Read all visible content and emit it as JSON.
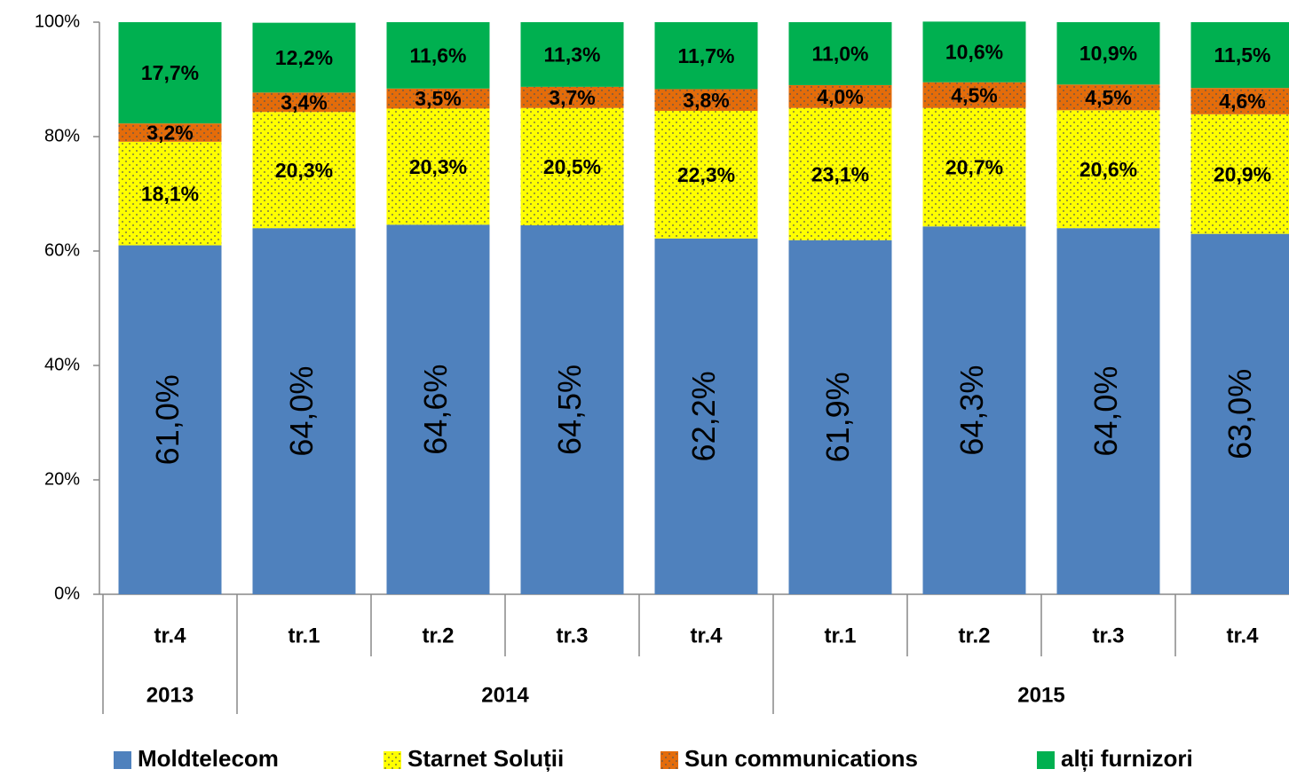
{
  "chart_data": {
    "type": "stacked_bar",
    "categories": [
      "tr.4",
      "tr.1",
      "tr.2",
      "tr.3",
      "tr.4",
      "tr.1",
      "tr.2",
      "tr.3",
      "tr.4"
    ],
    "year_groups": [
      {
        "name": "2013",
        "count": 1
      },
      {
        "name": "2014",
        "count": 4
      },
      {
        "name": "2015",
        "count": 4
      }
    ],
    "series": [
      {
        "name": "Moldtelecom",
        "color": "#4f81bd",
        "values": [
          61.0,
          64.0,
          64.6,
          64.5,
          62.2,
          61.9,
          64.3,
          64.0,
          63.0
        ],
        "value_labels": [
          "61,0%",
          "64,0%",
          "64,6%",
          "64,5%",
          "62,2%",
          "61,9%",
          "64,3%",
          "64,0%",
          "63,0%"
        ]
      },
      {
        "name": "Starnet Soluții",
        "color": "#ffff00",
        "pattern": "dots",
        "values": [
          18.1,
          20.3,
          20.3,
          20.5,
          22.3,
          23.1,
          20.7,
          20.6,
          20.9
        ],
        "value_labels": [
          "18,1%",
          "20,3%",
          "20,3%",
          "20,5%",
          "22,3%",
          "23,1%",
          "20,7%",
          "20,6%",
          "20,9%"
        ]
      },
      {
        "name": "Sun communications",
        "color": "#e46c0a",
        "pattern": "dots",
        "values": [
          3.2,
          3.4,
          3.5,
          3.7,
          3.8,
          4.0,
          4.5,
          4.5,
          4.6
        ],
        "value_labels": [
          "3,2%",
          "3,4%",
          "3,5%",
          "3,7%",
          "3,8%",
          "4,0%",
          "4,5%",
          "4,5%",
          "4,6%"
        ]
      },
      {
        "name": "alți furnizori",
        "color": "#00b050",
        "values": [
          17.7,
          12.2,
          11.6,
          11.3,
          11.7,
          11.0,
          10.6,
          10.9,
          11.5
        ],
        "value_labels": [
          "17,7%",
          "12,2%",
          "11,6%",
          "11,3%",
          "11,7%",
          "11,0%",
          "10,6%",
          "10,9%",
          "11,5%"
        ]
      }
    ],
    "ylim": [
      0,
      100
    ],
    "yticks": [
      {
        "value": 0,
        "label": "0%"
      },
      {
        "value": 20,
        "label": "20%"
      },
      {
        "value": 40,
        "label": "40%"
      },
      {
        "value": 60,
        "label": "60%"
      },
      {
        "value": 80,
        "label": "80%"
      },
      {
        "value": 100,
        "label": "100%"
      }
    ],
    "legend": "bottom"
  }
}
